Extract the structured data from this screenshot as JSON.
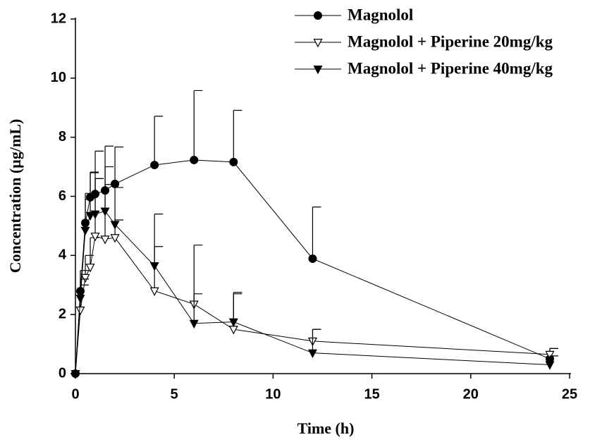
{
  "chart_data": {
    "type": "line",
    "x_label": "Time (h)",
    "y_label": "Concentration (µg/mL)",
    "x": [
      0,
      0.25,
      0.5,
      0.75,
      1,
      1.5,
      2,
      4,
      6,
      8,
      12,
      24
    ],
    "series": [
      {
        "name": "Magnolol",
        "color": "#000000",
        "marker": "circle",
        "values": [
          0,
          2.79,
          5.1,
          5.97,
          6.08,
          6.2,
          6.42,
          7.06,
          7.23,
          7.16,
          3.89,
          0.5
        ],
        "errors": [
          null,
          0.7,
          1.0,
          0.85,
          1.45,
          1.5,
          1.25,
          1.65,
          2.35,
          1.75,
          1.75,
          0.35
        ]
      },
      {
        "name": "Magnolol + Piperine 20mg/kg",
        "color": "#000000",
        "marker": "triangle-down-open",
        "values": [
          0,
          2.15,
          3.25,
          3.6,
          4.65,
          4.55,
          4.6,
          2.8,
          2.35,
          1.5,
          1.1,
          0.65
        ],
        "errors": [
          null,
          0.85,
          0.75,
          1.0,
          1.95,
          1.85,
          0.6,
          1.5,
          2.0,
          1.2,
          0.4,
          0.2
        ]
      },
      {
        "name": "Magnolol + Piperine 40mg/kg",
        "color": "#000000",
        "marker": "triangle-down",
        "values": [
          0,
          2.55,
          4.85,
          5.35,
          5.4,
          5.5,
          5.05,
          3.65,
          1.7,
          1.75,
          0.7,
          0.3
        ],
        "errors": [
          null,
          0.65,
          1.05,
          1.45,
          1.2,
          1.5,
          1.25,
          1.75,
          1.0,
          1.0,
          0.8,
          0.3
        ]
      }
    ],
    "xlim": [
      0,
      25
    ],
    "xticks": [
      0,
      5,
      10,
      15,
      20,
      25
    ],
    "ylim": [
      0,
      12
    ],
    "yticks": [
      0,
      2,
      4,
      6,
      8,
      10,
      12
    ],
    "grid": false,
    "legend": "top-right"
  }
}
